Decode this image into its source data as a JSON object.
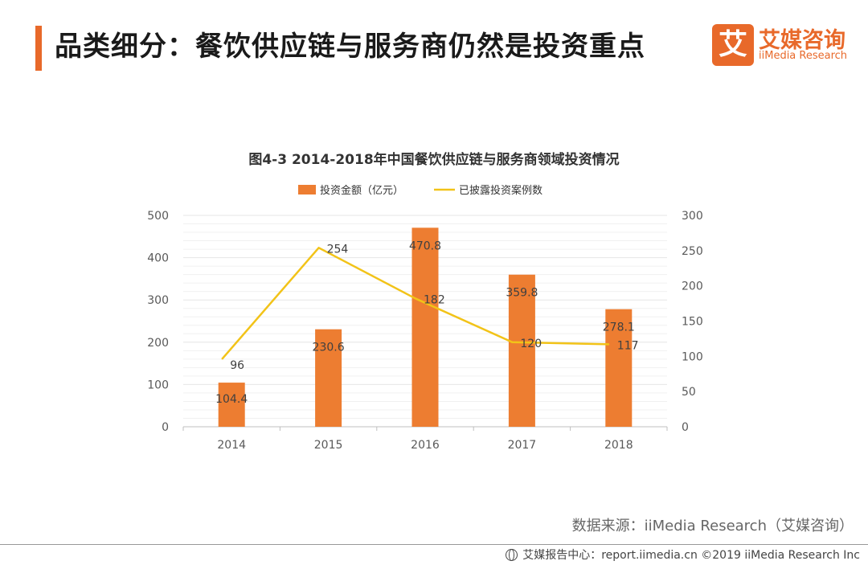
{
  "header": {
    "title": "品类细分：餐饮供应链与服务商仍然是投资重点"
  },
  "logo": {
    "mark": "艾",
    "cn": "艾媒咨询",
    "en": "iiMedia Research"
  },
  "colors": {
    "accent": "#e8692a",
    "bar": "#ed7d31",
    "line": "#f2c318"
  },
  "chart_data": {
    "type": "bar",
    "title": "图4-3  2014-2018年中国餐饮供应链与服务商领域投资情况",
    "categories": [
      "2014",
      "2015",
      "2016",
      "2017",
      "2018"
    ],
    "series": [
      {
        "name": "投资金额（亿元）",
        "type": "bar",
        "axis": "left",
        "values": [
          104.4,
          230.6,
          470.8,
          359.8,
          278.1
        ]
      },
      {
        "name": "已披露投资案例数",
        "type": "line",
        "axis": "right",
        "values": [
          96,
          254,
          182,
          120,
          117
        ]
      }
    ],
    "ylim_left": [
      0,
      500
    ],
    "yticks_left": [
      "0",
      "100",
      "200",
      "300",
      "400",
      "500"
    ],
    "ylim_right": [
      0,
      300
    ],
    "yticks_right": [
      "0",
      "50",
      "100",
      "150",
      "200",
      "250",
      "300"
    ],
    "grid": true,
    "legend": "top-center"
  },
  "source": "数据来源：iiMedia Research（艾媒咨询）",
  "footer": "艾媒报告中心：report.iimedia.cn  ©2019  iiMedia Research Inc"
}
